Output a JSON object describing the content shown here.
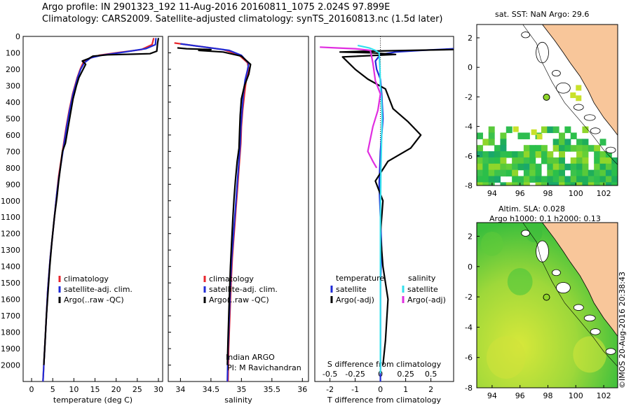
{
  "header": {
    "line1": "Argo profile: IN 2901323_192 11-Aug-2016 20160811_1075 2.024S 97.899E",
    "line2": "Climatology: CARS2009. Satellite-adjusted climatology: synTS_20160813.nc (1.5d later)"
  },
  "colors": {
    "clim": "#e8262c",
    "sat": "#1f2bd6",
    "argo": "#000000",
    "sal_sat": "#33e0ee",
    "sal_argo": "#e02ee0",
    "land": "#f8c69a"
  },
  "chart_data": [
    {
      "type": "line",
      "xlabel": "temperature (deg C)",
      "xlim": [
        -2,
        31
      ],
      "ylim": [
        0,
        2100
      ],
      "xticks": [
        0,
        5,
        10,
        15,
        20,
        25,
        30
      ],
      "yticks": [
        0,
        100,
        200,
        300,
        400,
        500,
        600,
        700,
        800,
        900,
        1000,
        1100,
        1200,
        1300,
        1400,
        1500,
        1600,
        1700,
        1800,
        1900,
        2000
      ],
      "legend": [
        "climatology",
        "satellite-adj. clim.",
        "Argo(..raw -QC)"
      ],
      "series": [
        {
          "name": "climatology",
          "color": "clim",
          "x": [
            28.9,
            28.5,
            26,
            20,
            16,
            13.5,
            12.2,
            11.5,
            10.8,
            9.7,
            8.9,
            8.2,
            7.6,
            7,
            6.4,
            6,
            5.6,
            5.2,
            4.8,
            4.4,
            4.1,
            3.8,
            3.5,
            3.2,
            2.9,
            2.7
          ],
          "y": [
            10,
            50,
            80,
            100,
            115,
            135,
            160,
            200,
            250,
            350,
            450,
            550,
            650,
            750,
            850,
            950,
            1050,
            1150,
            1250,
            1350,
            1450,
            1550,
            1700,
            1850,
            2000,
            2100
          ]
        },
        {
          "name": "satellite-adj. clim.",
          "color": "sat",
          "x": [
            29.4,
            29.3,
            27,
            22,
            16.5,
            14,
            12.5,
            11.6,
            10.9,
            9.8,
            9,
            8.3,
            7.7,
            7.1,
            6.5,
            6,
            5.6,
            5.2,
            4.8,
            4.4,
            4.1,
            3.8,
            3.5,
            3.2,
            2.9,
            2.7
          ],
          "y": [
            10,
            50,
            75,
            95,
            115,
            130,
            160,
            200,
            250,
            350,
            450,
            550,
            650,
            750,
            850,
            950,
            1050,
            1150,
            1250,
            1350,
            1450,
            1550,
            1700,
            1850,
            2000,
            2100
          ]
        },
        {
          "name": "Argo(..raw -QC)",
          "color": "argo",
          "x": [
            30,
            29.8,
            29.6,
            28,
            24,
            18,
            14.5,
            13.5,
            12,
            12.8,
            12,
            11.2,
            10.6,
            9.8,
            9.2,
            8.6,
            8,
            7.3,
            6.8,
            6.4,
            6,
            5.4,
            4.8,
            4.3,
            3.9,
            3.5,
            3.2,
            2.9
          ],
          "y": [
            10,
            40,
            90,
            105,
            108,
            112,
            120,
            135,
            150,
            170,
            210,
            250,
            300,
            380,
            470,
            560,
            650,
            700,
            800,
            880,
            980,
            1100,
            1250,
            1400,
            1550,
            1700,
            1850,
            2000
          ]
        }
      ]
    },
    {
      "type": "line",
      "xlabel": "salinity",
      "xlim": [
        33.8,
        36.1
      ],
      "ylim": [
        0,
        2100
      ],
      "xticks": [
        34,
        34.5,
        35,
        35.5,
        36
      ],
      "legend": [
        "climatology",
        "satellite-adj. clim.",
        "Argo(..raw -QC)"
      ],
      "annotations": [
        "Indian ARGO",
        "PI: M Ravichandran"
      ],
      "series": [
        {
          "name": "climatology",
          "color": "clim",
          "x": [
            33.9,
            34.3,
            34.7,
            34.95,
            35.1,
            35.12,
            35.08,
            35.05,
            35.02,
            35,
            34.99,
            34.97,
            34.95,
            34.93,
            34.91,
            34.89,
            34.87,
            34.85,
            34.83,
            34.81,
            34.79,
            34.78
          ],
          "y": [
            40,
            60,
            80,
            110,
            160,
            200,
            260,
            350,
            450,
            550,
            650,
            750,
            850,
            950,
            1050,
            1150,
            1250,
            1350,
            1500,
            1700,
            1900,
            2100
          ]
        },
        {
          "name": "satellite-adj. clim.",
          "color": "sat",
          "x": [
            34,
            34.4,
            34.8,
            35,
            35.12,
            35.1,
            35.06,
            35.03,
            35.01,
            34.99,
            34.98,
            34.96,
            34.94,
            34.92,
            34.9,
            34.88,
            34.86,
            34.84,
            34.82,
            34.8,
            34.78,
            34.77
          ],
          "y": [
            45,
            65,
            85,
            115,
            165,
            205,
            265,
            355,
            455,
            555,
            655,
            755,
            855,
            955,
            1055,
            1155,
            1255,
            1355,
            1505,
            1705,
            1905,
            2100
          ]
        },
        {
          "name": "Argo(..raw -QC)",
          "color": "argo",
          "x": [
            33.95,
            34.1,
            34.5,
            34.3,
            34.7,
            35,
            35.15,
            35.12,
            35.05,
            35,
            34.98,
            34.97,
            34.96,
            34.93,
            34.9,
            34.88,
            34.86,
            34.84,
            34.82,
            34.8,
            34.78,
            34.77
          ],
          "y": [
            70,
            75,
            80,
            85,
            95,
            120,
            170,
            230,
            300,
            380,
            480,
            580,
            680,
            760,
            880,
            980,
            1100,
            1250,
            1400,
            1600,
            1850,
            2000
          ]
        }
      ]
    },
    {
      "type": "line",
      "xlabel": "T difference from climatology",
      "x2label": "S difference from climatology",
      "xlim": [
        -2.6,
        2.9
      ],
      "ylim": [
        0,
        2100
      ],
      "xticks": [
        -2,
        -1,
        0,
        1,
        2
      ],
      "x2ticks": [
        -0.5,
        -0.25,
        0,
        0.25,
        0.5
      ],
      "x2ticklabels": [
        "-0.5",
        "-0.25",
        "0",
        "0.25",
        "0.5"
      ],
      "legend_headers": [
        "temperature",
        "salinity"
      ],
      "legend": [
        "satellite",
        "Argo(-adj)",
        "satellite",
        "Argo(-adj)"
      ],
      "series": [
        {
          "name": "temperature satellite",
          "color": "sat",
          "x": [
            2.9,
            1.6,
            0.6,
            0,
            -0.2,
            -0.15,
            0,
            0.05,
            0.1,
            0,
            -0.05,
            0,
            0.05,
            0,
            0,
            0
          ],
          "y": [
            75,
            85,
            95,
            110,
            150,
            200,
            260,
            350,
            500,
            700,
            900,
            1100,
            1300,
            1500,
            1800,
            2100
          ]
        },
        {
          "name": "temperature Argo(-adj)",
          "color": "argo",
          "x": [
            2.9,
            -0.5,
            -1.6,
            -0.3,
            0.6,
            -1.5,
            -1,
            -0.5,
            0.2,
            0.5,
            1.1,
            1.6,
            1.2,
            0.3,
            -0.2,
            0.1,
            0,
            0.1,
            0.3,
            0.2,
            0.1
          ],
          "y": [
            80,
            90,
            95,
            100,
            110,
            125,
            200,
            260,
            320,
            440,
            520,
            600,
            680,
            760,
            880,
            1000,
            1200,
            1400,
            1600,
            1850,
            2000
          ]
        },
        {
          "name": "salinity satellite",
          "color": "sal_sat",
          "x": [
            -0.9,
            -0.45,
            -0.2,
            -0.05,
            -0.02,
            0,
            0.05,
            0.07,
            0.05,
            0.02,
            0,
            0
          ],
          "y": [
            55,
            70,
            85,
            100,
            200,
            300,
            400,
            500,
            600,
            800,
            1100,
            2050
          ]
        },
        {
          "name": "salinity Argo(-adj)",
          "color": "sal_argo",
          "x": [
            -2.4,
            -1.8,
            -1,
            -0.4,
            -0.3,
            -0.2,
            0,
            -0.1,
            -0.3,
            -0.5,
            -0.3,
            -0.15
          ],
          "y": [
            65,
            70,
            75,
            85,
            160,
            270,
            350,
            450,
            550,
            700,
            760,
            800
          ]
        }
      ]
    }
  ],
  "maps": {
    "sst": {
      "title": "sat. SST: NaN Argo: 29.6",
      "xticks": [
        "94",
        "96",
        "98",
        "100",
        "102"
      ],
      "yticks": [
        "2",
        "0",
        "-2",
        "-4",
        "-6",
        "-8"
      ]
    },
    "sla": {
      "title1": "Altim. SLA: 0.028",
      "title2": "Argo h1000: 0.1 h2000: 0.13",
      "xticks": [
        "94",
        "96",
        "98",
        "100",
        "102"
      ],
      "yticks": [
        "2",
        "0",
        "-2",
        "-4",
        "-6",
        "-8"
      ]
    }
  },
  "credit": "©IMOS 20-Aug-2016 20:38:43"
}
